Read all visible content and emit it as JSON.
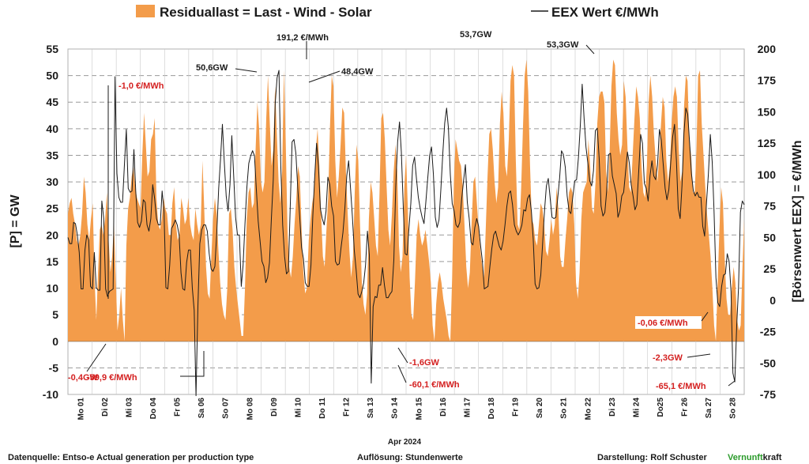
{
  "chart_data": {
    "type": "area",
    "legend": {
      "area_label": "Residuallast  =  Last - Wind - Solar",
      "line_label": "EEX Wert €/MWh",
      "area_color": "#f39c4a",
      "line_color": "#1a1a1a"
    },
    "y_left": {
      "title": "[P]  =  GW",
      "ylim": [
        -10,
        55
      ],
      "ticks": [
        "-10",
        "-5",
        "0",
        "5",
        "10",
        "15",
        "20",
        "25",
        "30",
        "35",
        "40",
        "45",
        "50",
        "55"
      ]
    },
    "y_right": {
      "title": "[Börsenwert  EEX]  = €/MWh",
      "ylim": [
        -75,
        200
      ],
      "ticks": [
        "-75",
        "-50",
        "-25",
        "0",
        "25",
        "50",
        "75",
        "100",
        "125",
        "150",
        "175",
        "200"
      ]
    },
    "grid": true,
    "x_period_label": "Apr 2024",
    "days": [
      "Mo 01",
      "Di 02",
      "Mi 03",
      "Do 04",
      "Fr 05",
      "Sa 06",
      "So 07",
      "Mo 08",
      "Di 09",
      "Mi 10",
      "Do 11",
      "Fr 12",
      "Sa 13",
      "So 14",
      "Mo 15",
      "Di 16",
      "Mi 17",
      "Do 18",
      "Fr 19",
      "Sa 20",
      "So 21",
      "Mo 22",
      "Di 23",
      "Mi 24",
      "Do25",
      "Fr 26",
      "Sa 27",
      "So 28"
    ],
    "residual_load_gw": [
      24,
      26,
      27,
      24,
      22,
      19,
      18,
      20,
      24,
      31,
      28,
      22,
      19,
      23,
      26,
      12,
      4,
      13,
      21,
      22,
      20,
      23,
      28,
      19,
      13,
      16,
      22,
      12,
      2,
      5,
      10,
      4,
      0,
      18,
      25,
      27,
      31,
      33,
      29,
      27,
      26,
      25,
      35,
      43,
      37,
      31,
      32,
      38,
      39,
      42,
      27,
      22,
      21,
      23,
      27,
      25,
      24,
      20,
      20,
      26,
      29,
      22,
      19,
      20,
      27,
      25,
      22,
      23,
      27,
      22,
      20,
      19,
      25,
      22,
      20,
      22,
      34,
      25,
      14,
      9,
      8,
      16,
      23,
      27,
      24,
      17,
      11,
      7,
      5,
      4,
      10,
      24,
      25,
      21,
      14,
      10,
      7,
      4,
      1,
      1,
      10,
      23,
      28,
      29,
      25,
      26,
      36,
      45,
      40,
      30,
      28,
      30,
      42,
      50,
      41,
      33,
      36,
      48,
      39,
      30,
      26,
      32,
      51,
      38,
      21,
      14,
      12,
      16,
      22,
      27,
      33,
      31,
      21,
      13,
      9,
      10,
      19,
      23,
      26,
      28,
      36,
      40,
      33,
      24,
      16,
      14,
      21,
      27,
      40,
      50,
      48,
      34,
      27,
      31,
      37,
      44,
      43,
      32,
      24,
      17,
      12,
      16,
      28,
      37,
      34,
      22,
      11,
      7,
      5,
      9,
      23,
      30,
      28,
      23,
      18,
      16,
      28,
      42,
      43,
      38,
      29,
      21,
      18,
      24,
      32,
      37,
      32,
      18,
      13,
      16,
      29,
      35,
      25,
      12,
      5,
      4,
      11,
      20,
      23,
      20,
      18,
      19,
      21,
      18,
      15,
      11,
      3,
      0,
      7,
      11,
      13,
      11,
      8,
      6,
      4,
      1,
      0,
      12,
      30,
      38,
      36,
      34,
      33,
      29,
      22,
      14,
      10,
      13,
      22,
      30,
      31,
      26,
      21,
      17,
      14,
      12,
      21,
      31,
      39,
      40,
      36,
      30,
      26,
      29,
      41,
      47,
      43,
      33,
      31,
      38,
      49,
      52,
      50,
      34,
      22,
      21,
      29,
      40,
      50,
      53,
      47,
      33,
      23,
      22,
      19,
      18,
      22,
      26,
      25,
      22,
      17,
      16,
      19,
      23,
      20,
      22,
      29,
      25,
      16,
      14,
      14,
      19,
      23,
      28,
      29,
      28,
      22,
      11,
      8,
      13,
      23,
      28,
      29,
      30,
      38,
      33,
      25,
      24,
      30,
      41,
      46,
      47,
      47,
      45,
      32,
      28,
      36,
      48,
      53,
      52,
      43,
      38,
      35,
      37,
      49,
      46,
      37,
      29,
      28,
      35,
      42,
      48,
      46,
      42,
      33,
      28,
      27,
      33,
      45,
      50,
      46,
      39,
      34,
      30,
      35,
      41,
      46,
      44,
      34,
      30,
      33,
      41,
      46,
      48,
      46,
      36,
      30,
      32,
      44,
      50,
      49,
      38,
      35,
      28,
      28,
      36,
      50,
      51,
      41,
      35,
      29,
      24,
      20,
      16,
      10,
      3,
      0,
      11,
      21,
      29,
      26,
      15,
      8,
      5,
      5,
      10,
      14,
      11,
      4,
      2,
      3,
      14,
      23
    ],
    "eex_price_eur_mwh": [
      50,
      45,
      45,
      62,
      61,
      52,
      38,
      9,
      9,
      40,
      52,
      48,
      11,
      9,
      38,
      10,
      8,
      8,
      79,
      65,
      9,
      3,
      7,
      8,
      9,
      178,
      101,
      82,
      78,
      78,
      108,
      136,
      89,
      86,
      87,
      120,
      87,
      62,
      58,
      63,
      80,
      78,
      60,
      55,
      65,
      92,
      81,
      65,
      60,
      60,
      87,
      71,
      10,
      9,
      28,
      57,
      60,
      64,
      60,
      52,
      22,
      9,
      8,
      30,
      40,
      40,
      10,
      -8,
      -76,
      -5,
      45,
      56,
      60,
      60,
      55,
      37,
      25,
      23,
      27,
      54,
      89,
      112,
      140,
      110,
      83,
      71,
      92,
      131,
      99,
      66,
      52,
      52,
      11,
      28,
      61,
      90,
      109,
      115,
      119,
      115,
      89,
      63,
      47,
      31,
      27,
      14,
      18,
      30,
      65,
      96,
      156,
      177,
      183,
      107,
      60,
      35,
      21,
      23,
      75,
      126,
      128,
      117,
      89,
      67,
      42,
      33,
      14,
      11,
      11,
      28,
      68,
      99,
      125,
      107,
      73,
      65,
      60,
      71,
      98,
      92,
      75,
      67,
      31,
      28,
      29,
      42,
      54,
      73,
      99,
      111,
      89,
      67,
      40,
      24,
      5,
      2,
      7,
      14,
      28,
      55,
      36,
      -66,
      -5,
      3,
      2,
      12,
      12,
      26,
      12,
      2,
      2,
      5,
      7,
      32,
      90,
      126,
      142,
      118,
      75,
      37,
      36,
      57,
      77,
      107,
      114,
      97,
      82,
      73,
      66,
      61,
      78,
      97,
      115,
      122,
      100,
      66,
      58,
      64,
      89,
      117,
      141,
      153,
      137,
      100,
      77,
      71,
      60,
      58,
      62,
      80,
      95,
      108,
      78,
      65,
      46,
      44,
      58,
      65,
      59,
      44,
      31,
      9,
      10,
      11,
      27,
      41,
      52,
      55,
      49,
      43,
      40,
      47,
      60,
      75,
      85,
      87,
      76,
      60,
      55,
      52,
      55,
      60,
      72,
      71,
      81,
      84,
      71,
      49,
      13,
      9,
      10,
      20,
      46,
      72,
      91,
      97,
      81,
      66,
      65,
      66,
      81,
      97,
      119,
      116,
      106,
      83,
      71,
      69,
      82,
      95,
      96,
      114,
      140,
      172,
      145,
      122,
      109,
      95,
      91,
      103,
      135,
      137,
      113,
      75,
      67,
      70,
      87,
      116,
      117,
      99,
      92,
      85,
      66,
      71,
      83,
      86,
      102,
      118,
      109,
      92,
      83,
      72,
      76,
      103,
      132,
      125,
      93,
      89,
      79,
      99,
      111,
      99,
      96,
      108,
      136,
      127,
      108,
      89,
      80,
      88,
      110,
      130,
      140,
      111,
      73,
      65,
      92,
      133,
      153,
      148,
      125,
      101,
      87,
      83,
      86,
      82,
      82,
      59,
      51,
      78,
      101,
      132,
      110,
      71,
      18,
      -2,
      -5,
      11,
      20,
      21,
      37,
      31,
      7,
      -58,
      -65,
      -20,
      10,
      70,
      79,
      76
    ],
    "annotations": [
      {
        "text": "-1,0 €/MWh",
        "color": "red"
      },
      {
        "text": "-0,4GW",
        "color": "red"
      },
      {
        "text": "-59,9 €/MWh",
        "color": "red"
      },
      {
        "text": "50,6GW",
        "color": "black"
      },
      {
        "text": "191,2 €/MWh",
        "color": "black"
      },
      {
        "text": "48,4GW",
        "color": "black"
      },
      {
        "text": "-1,6GW",
        "color": "red"
      },
      {
        "text": "-60,1 €/MWh",
        "color": "red"
      },
      {
        "text": "53,7GW",
        "color": "black"
      },
      {
        "text": "53,3GW",
        "color": "black"
      },
      {
        "text": "-0,06 €/MWh",
        "color": "red"
      },
      {
        "text": "-2,3GW",
        "color": "red"
      },
      {
        "text": "-65,1 €/MWh",
        "color": "red"
      }
    ]
  },
  "footer": {
    "source": "Datenquelle: Entso-e  Actual generation per production type",
    "resolution": "Auflösung:  Stundenwerte",
    "author": "Darstellung:  Rolf Schuster",
    "brand_green": "Vernunft",
    "brand_rest": "kraft"
  }
}
